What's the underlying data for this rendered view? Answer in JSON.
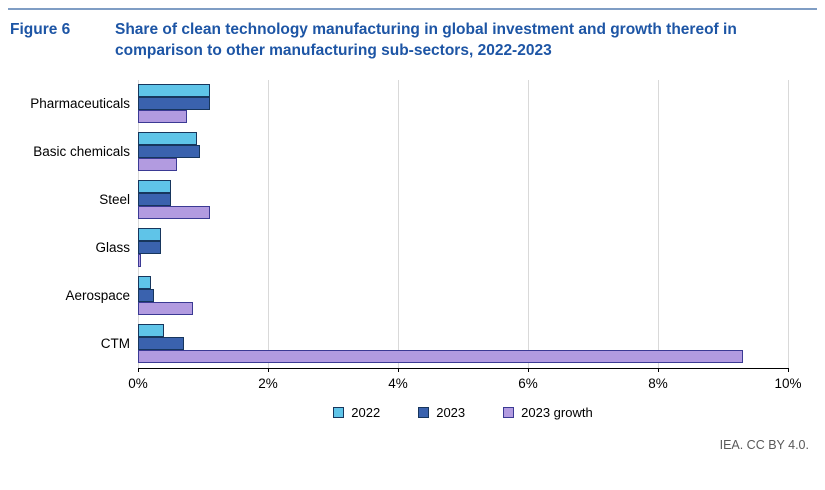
{
  "figure": {
    "label": "Figure 6",
    "title": "Share of clean technology manufacturing in global investment and growth thereof in comparison to other manufacturing sub-sectors, 2022-2023"
  },
  "footer": {
    "credit": "IEA. CC BY 4.0."
  },
  "colors": {
    "title_blue": "#1D55A5",
    "top_divider_blue": "#7F9DC4",
    "gridline_gray": "#D9D9D9",
    "axis_black": "#000000",
    "footer_gray": "#595959",
    "series_2022_fill": "#5FC4E8",
    "series_2023_fill": "#3A62AE",
    "series_growth_fill": "#B29BE0"
  },
  "chart_data": {
    "type": "bar",
    "orientation": "horizontal",
    "title": "Share of clean technology manufacturing in global investment and growth thereof in comparison to other manufacturing sub-sectors, 2022-2023",
    "categories": [
      "Pharmaceuticals",
      "Basic chemicals",
      "Steel",
      "Glass",
      "Aerospace",
      "CTM"
    ],
    "series": [
      {
        "name": "2022",
        "color": "#5FC4E8",
        "border": "#17365D",
        "values": [
          1.1,
          0.9,
          0.5,
          0.35,
          0.2,
          0.4
        ]
      },
      {
        "name": "2023",
        "color": "#3A62AE",
        "border": "#17365D",
        "values": [
          1.1,
          0.95,
          0.5,
          0.35,
          0.25,
          0.7
        ]
      },
      {
        "name": "2023 growth",
        "color": "#B29BE0",
        "border": "#3B3A94",
        "values": [
          0.75,
          0.6,
          1.1,
          0.05,
          0.85,
          9.3
        ]
      }
    ],
    "xlabel": "",
    "ylabel": "",
    "xlim": [
      0,
      10
    ],
    "xticks": [
      0,
      2,
      4,
      6,
      8,
      10
    ],
    "xtick_suffix": "%",
    "grid": true,
    "legend_position": "bottom"
  }
}
